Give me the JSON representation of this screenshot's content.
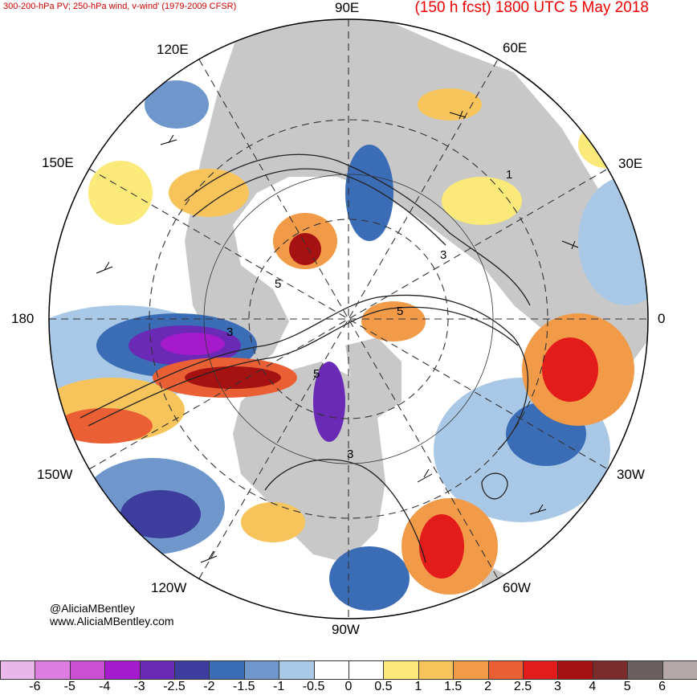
{
  "header": {
    "left_title": "300-200-hPa PV; 250-hPa wind, v-wind' (1979-2009 CFSR)",
    "right_title": "(150 h fcst) 1800 UTC 5 May 2018"
  },
  "longitude_labels": {
    "n90e": "90E",
    "n60e": "60E",
    "n120e": "120E",
    "n150e": "150E",
    "n30e": "30E",
    "n180": "180",
    "n0": "0",
    "n150w": "150W",
    "n30w": "30W",
    "n120w": "120W",
    "n60w": "60W",
    "n90w": "90W"
  },
  "map_labels": {
    "pv_1": "1",
    "pv_3a": "3",
    "pv_3b": "3",
    "pv_3c": "3",
    "pv_5a": "5",
    "pv_5b": "5",
    "pv_5c": "5"
  },
  "credits": {
    "handle": "@AliciaMBentley",
    "website": "www.AliciaMBentley.com"
  },
  "colorbar": {
    "ticks": [
      "-6",
      "-5",
      "-4",
      "-3",
      "-2.5",
      "-2",
      "-1.5",
      "-1",
      "-0.5",
      "0",
      "0.5",
      "1",
      "1.5",
      "2",
      "2.5",
      "3",
      "4",
      "5",
      "6"
    ],
    "colors": [
      "#e9b7ea",
      "#dd7ce0",
      "#cb4fd3",
      "#a51bcc",
      "#6a2ab5",
      "#3d3d9e",
      "#3b6cb6",
      "#6f97cc",
      "#a9c8e6",
      "#ffffff",
      "#ffffff",
      "#fbe97a",
      "#f6c45a",
      "#f19a48",
      "#ea5f33",
      "#e31b1b",
      "#a61212",
      "#7a2b2b",
      "#6a6060",
      "#b4a8a8"
    ]
  }
}
